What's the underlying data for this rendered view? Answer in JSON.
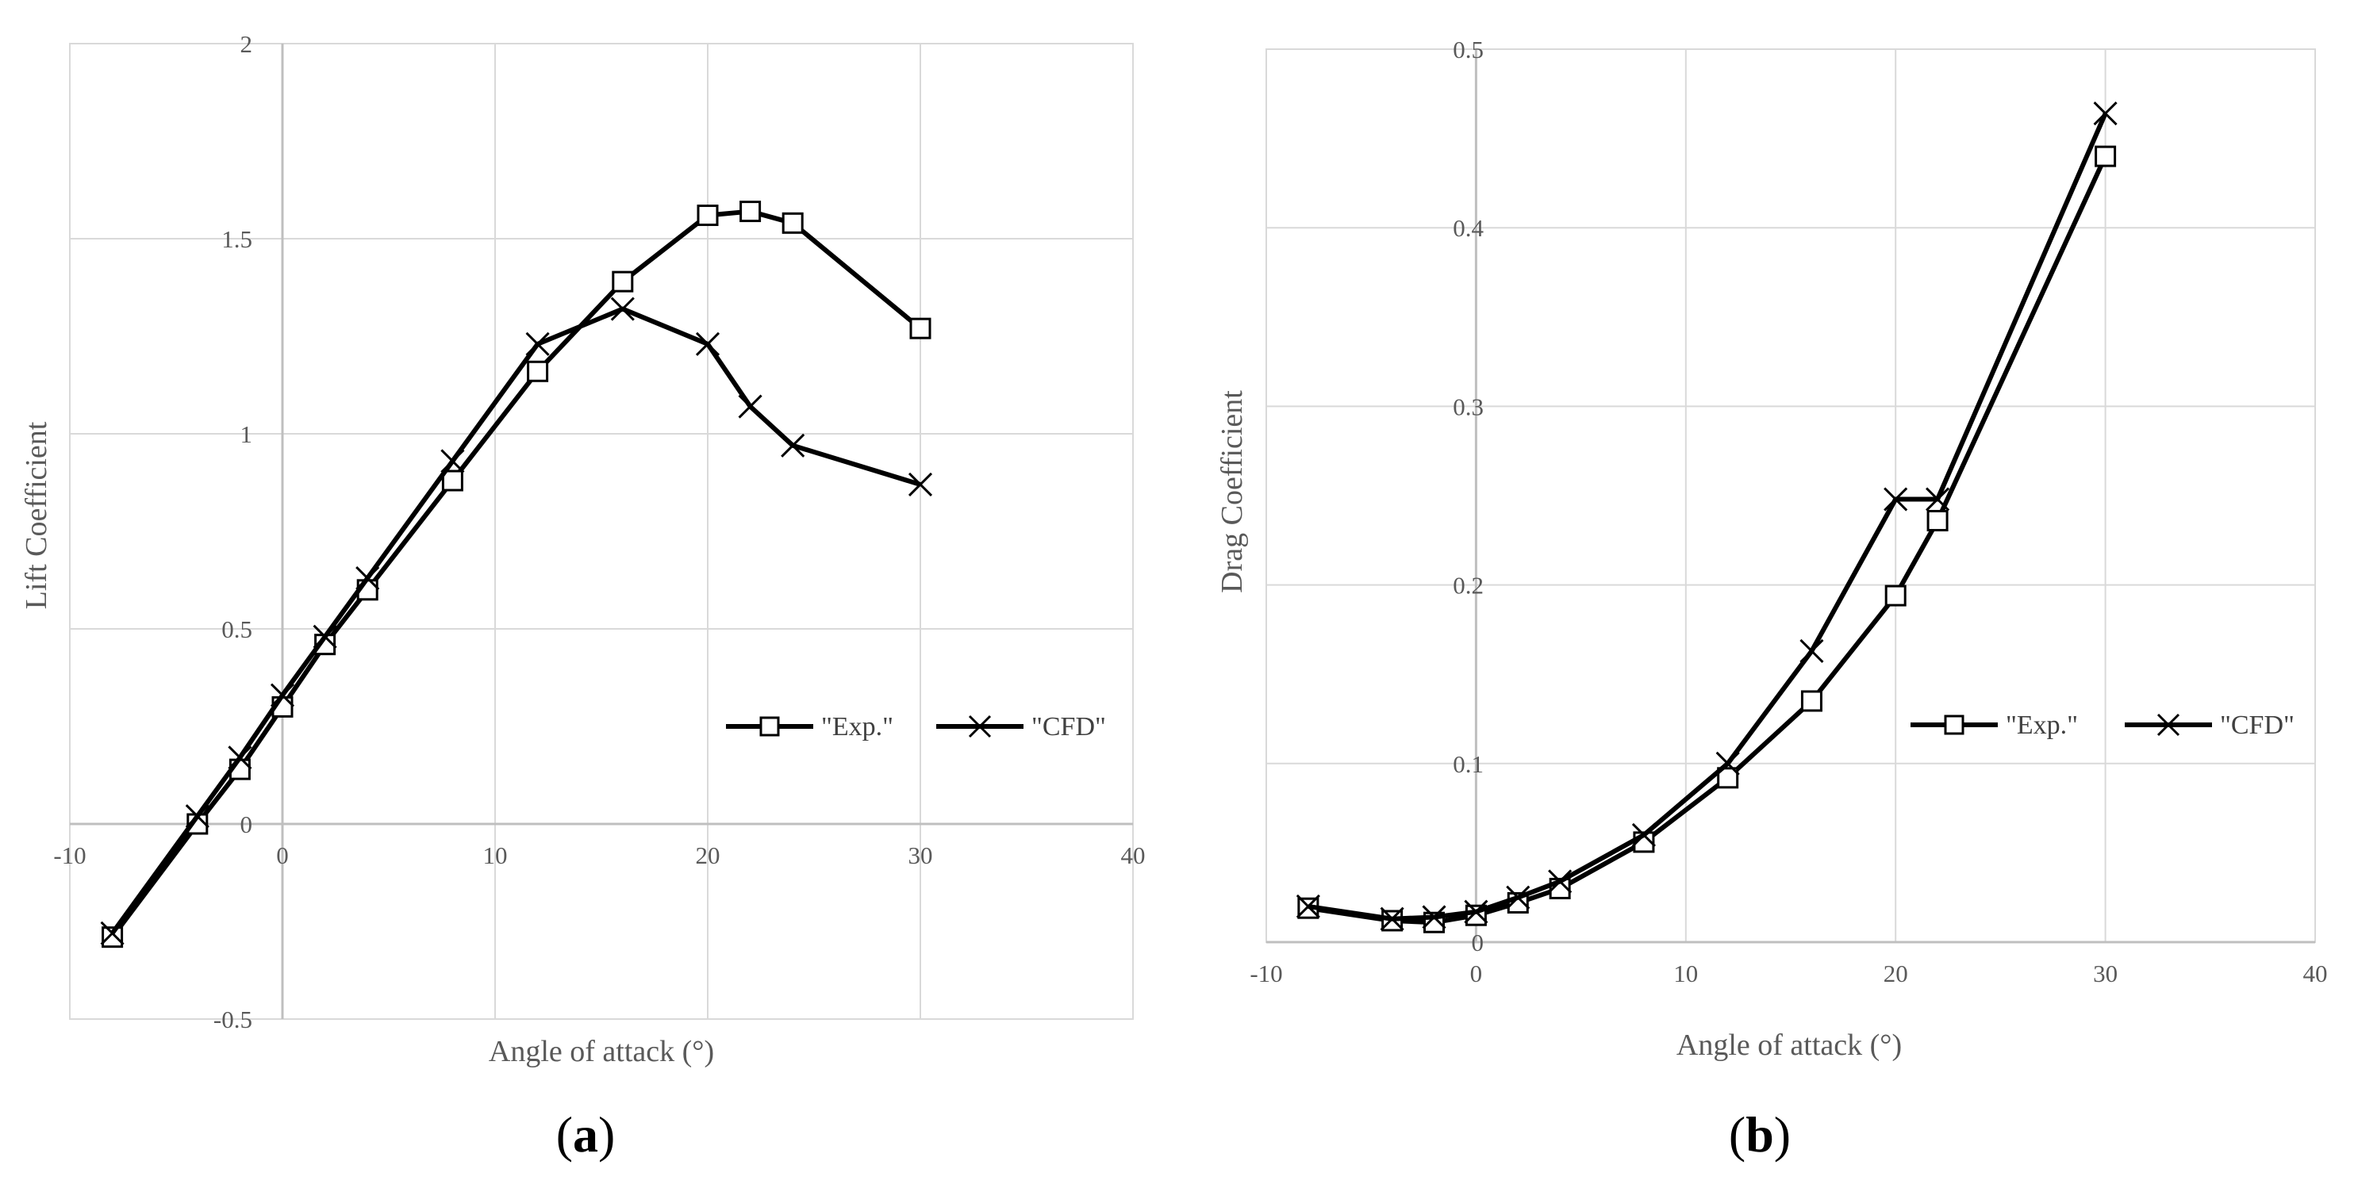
{
  "figure": {
    "panels": [
      {
        "caption_open": "(",
        "caption_letter": "a",
        "caption_close": ")"
      },
      {
        "caption_open": "(",
        "caption_letter": "b",
        "caption_close": ")"
      }
    ]
  },
  "chart_data": [
    {
      "type": "line",
      "title": "",
      "xlabel": "Angle of attack (°)",
      "ylabel": "Lift Coefficient",
      "xlim": [
        -10,
        40
      ],
      "ylim": [
        -0.5,
        2
      ],
      "xticks": [
        -10,
        0,
        10,
        20,
        30,
        40
      ],
      "yticks": [
        -0.5,
        0,
        0.5,
        1,
        1.5,
        2
      ],
      "xtick_labels": [
        "-10",
        "0",
        "10",
        "20",
        "30",
        "40"
      ],
      "ytick_labels": [
        "-0.5",
        "0",
        "0.5",
        "1",
        "1.5",
        "2"
      ],
      "grid": true,
      "legend": "right",
      "series": [
        {
          "name": "\"Exp.\"",
          "marker": "square",
          "x": [
            -8,
            -4,
            -2,
            0,
            2,
            4,
            8,
            12,
            16,
            20,
            22,
            24,
            30
          ],
          "y": [
            -0.29,
            0.0,
            0.14,
            0.3,
            0.46,
            0.6,
            0.88,
            1.16,
            1.39,
            1.56,
            1.57,
            1.54,
            1.27
          ]
        },
        {
          "name": "\"CFD\"",
          "marker": "x",
          "x": [
            -8,
            -4,
            -2,
            0,
            2,
            4,
            8,
            12,
            16,
            20,
            22,
            24,
            30
          ],
          "y": [
            -0.28,
            0.02,
            0.17,
            0.33,
            0.48,
            0.63,
            0.93,
            1.23,
            1.32,
            1.23,
            1.07,
            0.97,
            0.87
          ]
        }
      ]
    },
    {
      "type": "line",
      "title": "",
      "xlabel": "Angle of attack (°)",
      "ylabel": "Drag Coefficient",
      "xlim": [
        -10,
        40
      ],
      "ylim": [
        0,
        0.5
      ],
      "xticks": [
        -10,
        0,
        10,
        20,
        30,
        40
      ],
      "yticks": [
        0,
        0.1,
        0.2,
        0.3,
        0.4,
        0.5
      ],
      "xtick_labels": [
        "-10",
        "0",
        "10",
        "20",
        "30",
        "40"
      ],
      "ytick_labels": [
        "0",
        "0.1",
        "0.2",
        "0.3",
        "0.4",
        "0.5"
      ],
      "grid": true,
      "legend": "right",
      "series": [
        {
          "name": "\"Exp.\"",
          "marker": "square",
          "x": [
            -8,
            -4,
            -2,
            0,
            2,
            4,
            8,
            12,
            16,
            20,
            22,
            30
          ],
          "y": [
            0.019,
            0.012,
            0.011,
            0.015,
            0.022,
            0.03,
            0.056,
            0.092,
            0.135,
            0.194,
            0.236,
            0.44
          ]
        },
        {
          "name": "\"CFD\"",
          "marker": "x",
          "x": [
            -8,
            -4,
            -2,
            0,
            2,
            4,
            8,
            12,
            16,
            20,
            22,
            30
          ],
          "y": [
            0.02,
            0.013,
            0.014,
            0.017,
            0.025,
            0.034,
            0.06,
            0.1,
            0.163,
            0.248,
            0.248,
            0.464
          ]
        }
      ]
    }
  ]
}
